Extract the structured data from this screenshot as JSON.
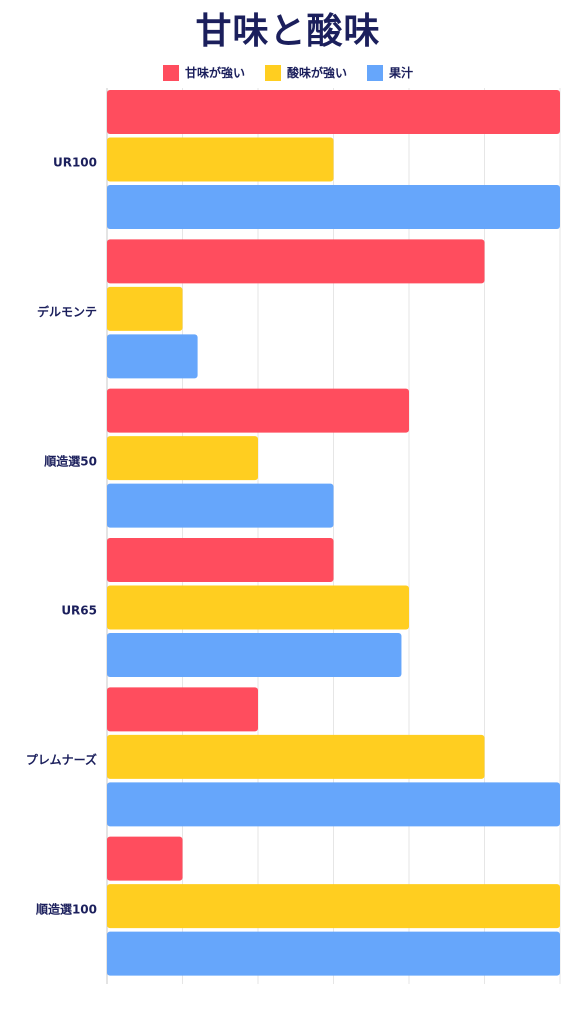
{
  "chart_data": {
    "type": "bar",
    "orientation": "horizontal",
    "title": "甘味と酸味",
    "categories": [
      "UR100",
      "デルモンテ",
      "順造選50",
      "UR65",
      "プレムナーズ",
      "順造選100"
    ],
    "series": [
      {
        "name": "甘味が強い",
        "color": "#ff4d5e",
        "values": [
          6,
          5,
          4,
          3,
          2,
          1
        ]
      },
      {
        "name": "酸味が強い",
        "color": "#ffce20",
        "values": [
          3,
          1,
          2,
          4,
          5,
          6
        ]
      },
      {
        "name": "果汁",
        "color": "#66a6fb",
        "values": [
          6,
          1.2,
          3,
          3.9,
          6,
          6
        ]
      }
    ],
    "xlim": [
      0,
      6
    ],
    "grid": true,
    "legend": "top-center"
  }
}
